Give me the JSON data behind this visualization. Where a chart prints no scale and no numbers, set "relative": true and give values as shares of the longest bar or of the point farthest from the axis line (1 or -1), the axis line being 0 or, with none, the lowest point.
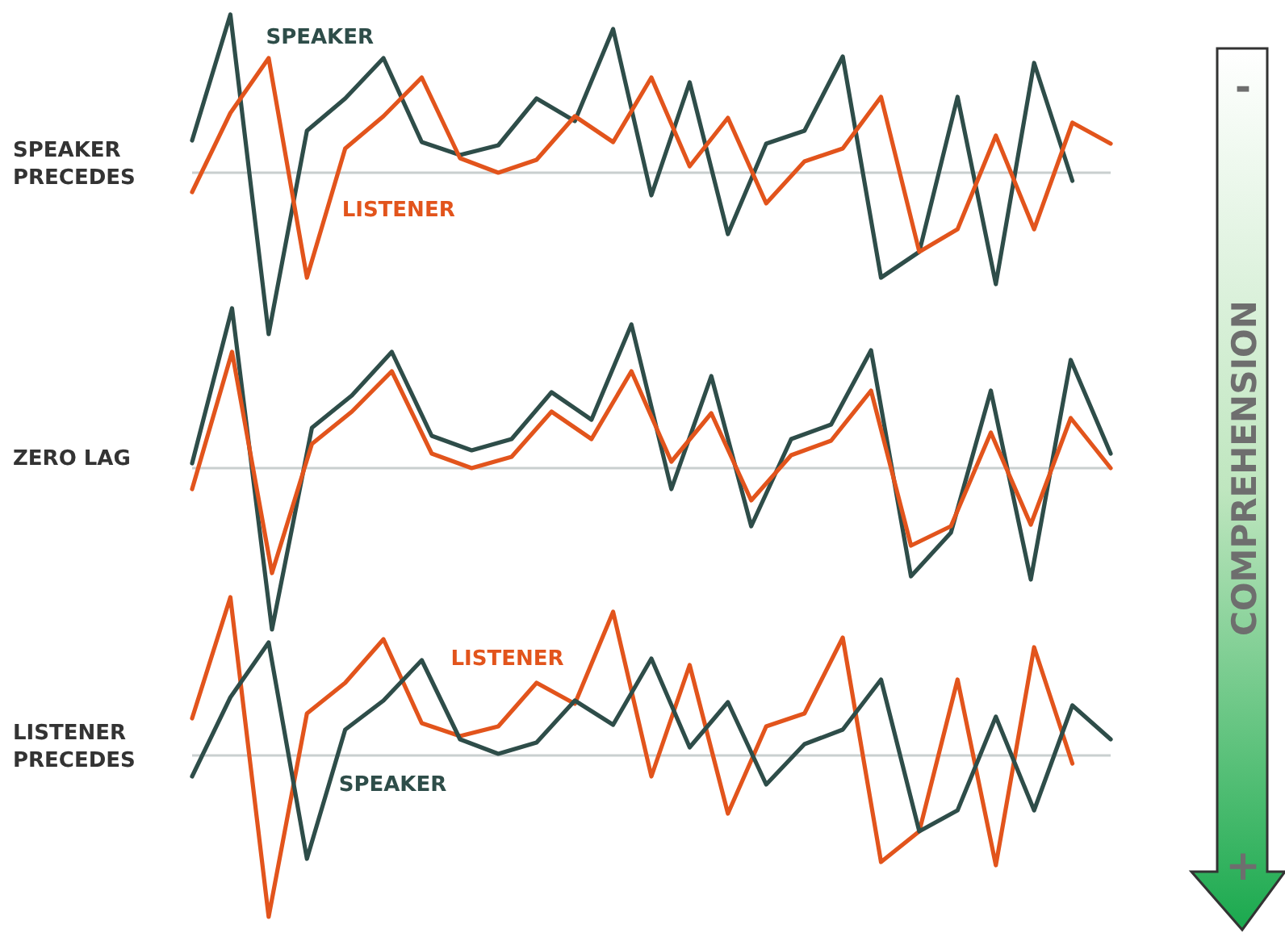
{
  "chart_data": [
    {
      "type": "line",
      "title": "SPEAKER PRECEDES",
      "relative": true,
      "categories": [
        null,
        null,
        null,
        null,
        null,
        null,
        null,
        null,
        null,
        null,
        null,
        null,
        null,
        null,
        null,
        null,
        null,
        null,
        null,
        null,
        null,
        null,
        null,
        null,
        null
      ],
      "series": [
        {
          "name": "SPEAKER",
          "color": "#2e4d49",
          "values": [
            0.2,
            0.98,
            -1,
            0.26,
            0.46,
            0.71,
            0.19,
            0.11,
            0.17,
            0.46,
            0.32,
            0.89,
            -0.14,
            0.56,
            -0.38,
            0.18,
            0.26,
            0.72,
            -0.65,
            -0.49,
            0.47,
            -0.69,
            0.68,
            -0.05,
            null
          ]
        },
        {
          "name": "LISTENER",
          "color": "#e2541c",
          "values": [
            -0.12,
            0.37,
            0.71,
            -0.65,
            0.15,
            0.35,
            0.59,
            0.09,
            0,
            0.08,
            0.35,
            0.19,
            0.59,
            0.04,
            0.34,
            -0.19,
            0.07,
            0.15,
            0.47,
            -0.49,
            -0.35,
            0.23,
            -0.35,
            0.31,
            0.18
          ]
        }
      ]
    },
    {
      "type": "line",
      "title": "ZERO LAG",
      "relative": true,
      "categories": [
        null,
        null,
        null,
        null,
        null,
        null,
        null,
        null,
        null,
        null,
        null,
        null,
        null,
        null,
        null,
        null,
        null,
        null,
        null,
        null,
        null,
        null,
        null,
        null
      ],
      "series": [
        {
          "color": "#2e4d49",
          "values": [
            0.03,
            0.99,
            -1,
            0.25,
            0.45,
            0.72,
            0.2,
            0.11,
            0.18,
            0.47,
            0.3,
            0.89,
            -0.13,
            0.57,
            -0.36,
            0.18,
            0.27,
            0.73,
            -0.67,
            -0.4,
            0.48,
            -0.69,
            0.67,
            0.09
          ]
        },
        {
          "color": "#e2541c",
          "values": [
            -0.13,
            0.72,
            -0.65,
            0.15,
            0.35,
            0.6,
            0.09,
            0,
            0.07,
            0.35,
            0.18,
            0.6,
            0.04,
            0.34,
            -0.2,
            0.08,
            0.17,
            0.48,
            -0.48,
            -0.36,
            0.22,
            -0.35,
            0.31,
            0
          ]
        }
      ]
    },
    {
      "type": "line",
      "title": "LISTENER PRECEDES",
      "relative": true,
      "categories": [
        null,
        null,
        null,
        null,
        null,
        null,
        null,
        null,
        null,
        null,
        null,
        null,
        null,
        null,
        null,
        null,
        null,
        null,
        null,
        null,
        null,
        null,
        null,
        null,
        null
      ],
      "series": [
        {
          "name": "LISTENER",
          "color": "#e2541c",
          "values": [
            0.23,
            0.98,
            -1,
            0.26,
            0.45,
            0.72,
            0.2,
            0.12,
            0.18,
            0.45,
            0.32,
            0.89,
            -0.13,
            0.56,
            -0.36,
            0.18,
            0.26,
            0.73,
            -0.66,
            -0.47,
            0.47,
            -0.68,
            0.67,
            -0.05,
            null
          ]
        },
        {
          "name": "SPEAKER",
          "color": "#2e4d49",
          "values": [
            -0.13,
            0.36,
            0.7,
            -0.64,
            0.16,
            0.34,
            0.59,
            0.1,
            0.01,
            0.08,
            0.34,
            0.19,
            0.6,
            0.05,
            0.33,
            -0.18,
            0.07,
            0.16,
            0.47,
            -0.47,
            -0.34,
            0.24,
            -0.34,
            0.31,
            0.1
          ]
        }
      ]
    },
    {
      "type": "other",
      "title": "COMPREHENSION",
      "annotations": [
        "-",
        "+"
      ]
    }
  ]
}
